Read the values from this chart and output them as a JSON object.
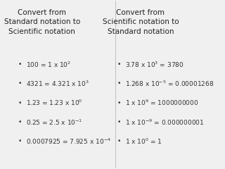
{
  "bg_color": "#f0f0f0",
  "left_title": "Convert from\nStandard notation to\nScientific notation",
  "right_title": "Convert from\nScientific notation to\nStandard notation",
  "left_items": [
    "100 = 1 x 10$^{2}$",
    "4321 = 4.321 x 10$^{3}$",
    "1.23 = 1.23 x 10$^{0}$",
    "0.25 = 2.5 x 10$^{-1}$",
    "0.0007925 = 7.925 x 10$^{-4}$"
  ],
  "right_items": [
    "3.78 x 10$^{3}$ = 3780",
    "1.268 x 10$^{-5}$ = 0.00001268",
    "1 x 10$^{9}$ = 1000000000",
    "1 x 10$^{-9}$ = 0.000000001",
    "1 x 10$^{0}$ = 1"
  ],
  "title_fontsize": 7.5,
  "item_fontsize": 6.5,
  "title_color": "#222222",
  "item_color": "#333333",
  "divider_color": "#aaaaaa"
}
